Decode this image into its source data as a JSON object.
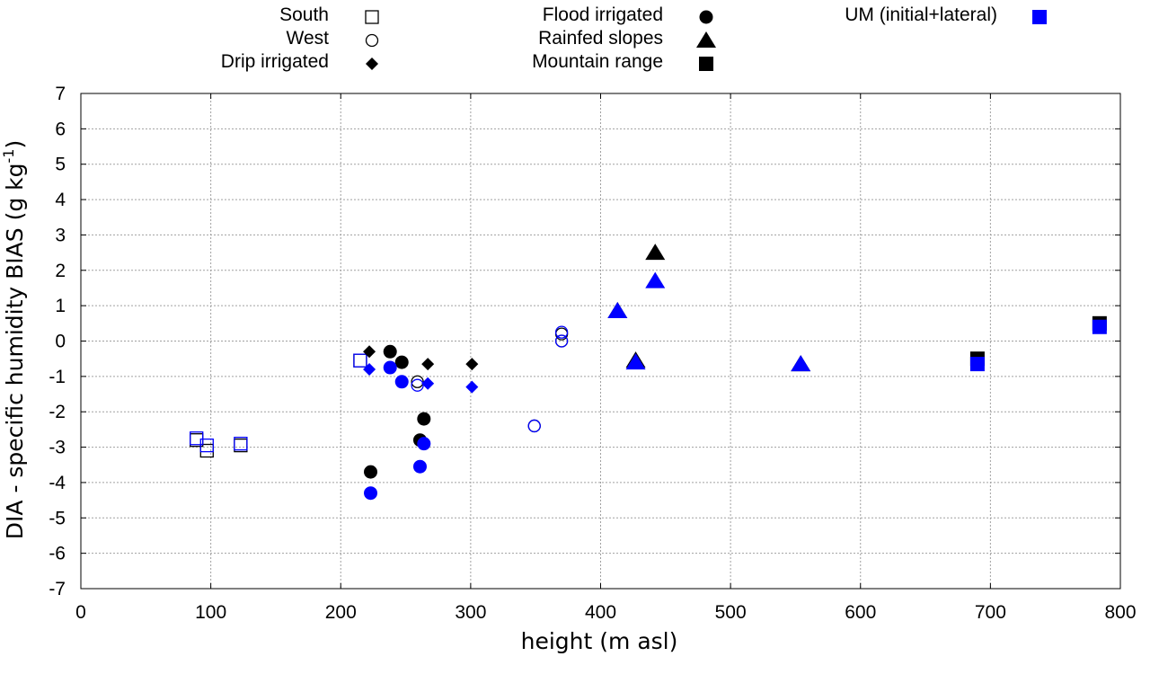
{
  "chart_data": {
    "type": "scatter",
    "xlabel": "height (m asl)",
    "ylabel_main": "DIA - specific humidity BIAS (g kg",
    "ylabel_sup": "-1",
    "ylabel_close": ")",
    "xlim": [
      0,
      800
    ],
    "ylim": [
      -7,
      7
    ],
    "x_ticks": [
      0,
      100,
      200,
      300,
      400,
      500,
      600,
      700,
      800
    ],
    "y_ticks": [
      -7,
      -6,
      -5,
      -4,
      -3,
      -2,
      -1,
      0,
      1,
      2,
      3,
      4,
      5,
      6,
      7
    ],
    "grid": true,
    "legend": [
      {
        "label": "South",
        "shape": "square-open",
        "color": "#000000"
      },
      {
        "label": "West",
        "shape": "circle-open",
        "color": "#000000"
      },
      {
        "label": "Drip irrigated",
        "shape": "diamond",
        "color": "#000000"
      },
      {
        "label": "Flood irrigated",
        "shape": "circle",
        "color": "#000000"
      },
      {
        "label": "Rainfed slopes",
        "shape": "triangle",
        "color": "#000000"
      },
      {
        "label": "Mountain range",
        "shape": "square",
        "color": "#000000"
      },
      {
        "label": "UM (initial+lateral)",
        "shape": "square",
        "color": "#0000ff"
      }
    ],
    "series": [
      {
        "region": "South",
        "shape": "square-open",
        "color": "#000000",
        "x": [
          89,
          97,
          123,
          215
        ],
        "y": [
          -2.8,
          -3.1,
          -2.95,
          -0.55
        ]
      },
      {
        "region": "South",
        "shape": "square-open",
        "color": "#0000ff",
        "x": [
          89,
          97,
          123,
          215
        ],
        "y": [
          -2.75,
          -2.95,
          -2.9,
          -0.55
        ]
      },
      {
        "region": "West",
        "shape": "circle-open",
        "color": "#000000",
        "x": [
          259,
          349,
          370,
          370
        ],
        "y": [
          -1.15,
          -2.4,
          0.2,
          0.0
        ]
      },
      {
        "region": "West",
        "shape": "circle-open",
        "color": "#0000ff",
        "x": [
          259,
          349,
          370,
          370
        ],
        "y": [
          -1.25,
          -2.4,
          0.25,
          0.0
        ]
      },
      {
        "region": "Drip irrigated",
        "shape": "diamond",
        "color": "#000000",
        "x": [
          222,
          267,
          301
        ],
        "y": [
          -0.3,
          -0.65,
          -0.65
        ]
      },
      {
        "region": "Drip irrigated",
        "shape": "diamond",
        "color": "#0000ff",
        "x": [
          222,
          267,
          301
        ],
        "y": [
          -0.8,
          -1.2,
          -1.3
        ]
      },
      {
        "region": "Flood irrigated",
        "shape": "circle",
        "color": "#000000",
        "x": [
          223,
          238,
          247,
          261,
          264
        ],
        "y": [
          -3.7,
          -0.3,
          -0.6,
          -2.8,
          -2.2
        ]
      },
      {
        "region": "Flood irrigated",
        "shape": "circle",
        "color": "#0000ff",
        "x": [
          223,
          238,
          247,
          261,
          264
        ],
        "y": [
          -4.3,
          -0.75,
          -1.15,
          -3.55,
          -2.9
        ]
      },
      {
        "region": "Rainfed slopes",
        "shape": "triangle",
        "color": "#000000",
        "x": [
          413,
          427,
          442,
          554
        ],
        "y": [
          0.85,
          -0.55,
          2.5,
          -0.65
        ]
      },
      {
        "region": "Rainfed slopes",
        "shape": "triangle",
        "color": "#0000ff",
        "x": [
          413,
          427,
          442,
          554
        ],
        "y": [
          0.85,
          -0.6,
          1.7,
          -0.65
        ]
      },
      {
        "region": "Mountain range",
        "shape": "square",
        "color": "#000000",
        "x": [
          690,
          784
        ],
        "y": [
          -0.5,
          0.5
        ]
      },
      {
        "region": "Mountain range",
        "shape": "square",
        "color": "#0000ff",
        "x": [
          690,
          784
        ],
        "y": [
          -0.65,
          0.4
        ]
      }
    ]
  }
}
